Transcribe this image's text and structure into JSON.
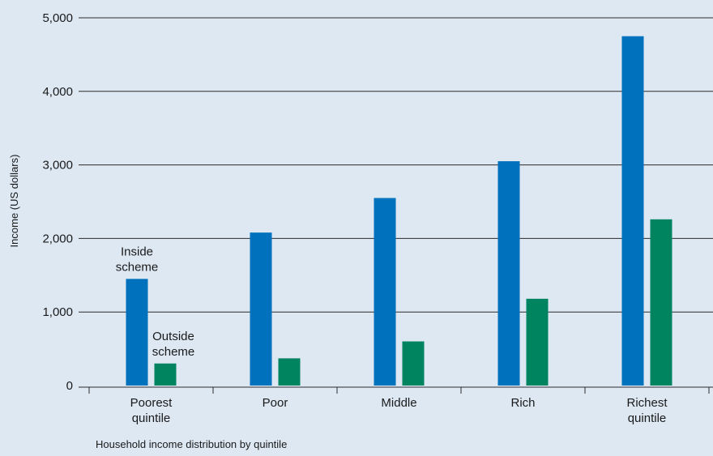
{
  "chart_data": {
    "type": "bar",
    "categories": [
      [
        "Poorest",
        "quintile"
      ],
      [
        "Poor"
      ],
      [
        "Middle"
      ],
      [
        "Rich"
      ],
      [
        "Richest",
        "quintile"
      ]
    ],
    "series": [
      {
        "name": "Inside scheme",
        "label_lines": [
          "Inside",
          "scheme"
        ],
        "color": "#0071bc",
        "values": [
          1450,
          2080,
          2550,
          3050,
          4750
        ]
      },
      {
        "name": "Outside scheme",
        "label_lines": [
          "Outside",
          "scheme"
        ],
        "color": "#00845f",
        "values": [
          300,
          370,
          600,
          1180,
          2260
        ]
      }
    ],
    "ylim": [
      0,
      5000
    ],
    "yticks": [
      0,
      1000,
      2000,
      3000,
      4000,
      5000
    ],
    "ytick_labels": [
      "0",
      "1,000",
      "2,000",
      "3,000",
      "4,000",
      "5,000"
    ],
    "ylabel": "Income (US dollars)",
    "xlabel": "Household income distribution by quintile",
    "grid": true
  }
}
